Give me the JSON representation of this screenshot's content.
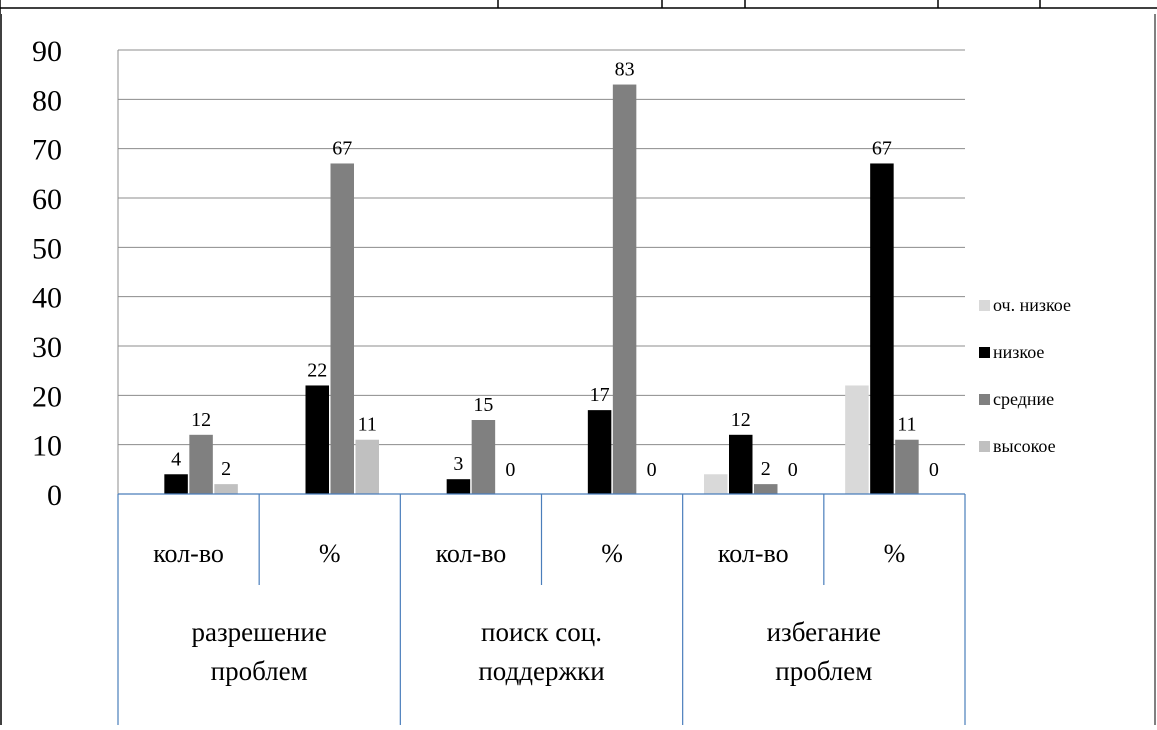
{
  "chart_data": {
    "type": "bar",
    "ylim": [
      0,
      90
    ],
    "yticks": [
      0,
      10,
      20,
      30,
      40,
      50,
      60,
      70,
      80,
      90
    ],
    "grid": true,
    "legend_position": "right",
    "categories": [
      "кол-во",
      "%",
      "кол-во",
      "%",
      "кол-во",
      "%"
    ],
    "groups": [
      "разрешение проблем",
      "поиск соц. поддержки",
      "избегание проблем"
    ],
    "group_lines": [
      [
        "разрешение",
        "проблем"
      ],
      [
        "поиск соц.",
        "поддержки"
      ],
      [
        "избегание",
        "проблем"
      ]
    ],
    "series": [
      {
        "name": "оч. низкое",
        "color": "#d9d9d9",
        "values": [
          null,
          null,
          null,
          null,
          4,
          22
        ]
      },
      {
        "name": "низкое",
        "color": "#000000",
        "values": [
          4,
          22,
          3,
          17,
          12,
          67
        ]
      },
      {
        "name": "средние",
        "color": "#808080",
        "values": [
          12,
          67,
          15,
          83,
          2,
          11
        ]
      },
      {
        "name": "высокое",
        "color": "#c0c0c0",
        "values": [
          2,
          11,
          0,
          0,
          0,
          0
        ]
      }
    ],
    "data_labels": [
      {
        "category": 0,
        "series": 1,
        "text": "4"
      },
      {
        "category": 0,
        "series": 2,
        "text": "12"
      },
      {
        "category": 0,
        "series": 3,
        "text": "2"
      },
      {
        "category": 1,
        "series": 1,
        "text": "22"
      },
      {
        "category": 1,
        "series": 2,
        "text": "67"
      },
      {
        "category": 1,
        "series": 3,
        "text": "11"
      },
      {
        "category": 2,
        "series": 1,
        "text": "3"
      },
      {
        "category": 2,
        "series": 2,
        "text": "15"
      },
      {
        "category": 2,
        "series": 3,
        "text": "0"
      },
      {
        "category": 3,
        "series": 1,
        "text": "17"
      },
      {
        "category": 3,
        "series": 2,
        "text": "83"
      },
      {
        "category": 3,
        "series": 3,
        "text": "0"
      },
      {
        "category": 4,
        "series": 1,
        "text": "12"
      },
      {
        "category": 4,
        "series": 2,
        "text": "2"
      },
      {
        "category": 4,
        "series": 3,
        "text": "0"
      },
      {
        "category": 5,
        "series": 1,
        "text": "67"
      },
      {
        "category": 5,
        "series": 2,
        "text": "11"
      },
      {
        "category": 5,
        "series": 3,
        "text": "0"
      }
    ]
  }
}
